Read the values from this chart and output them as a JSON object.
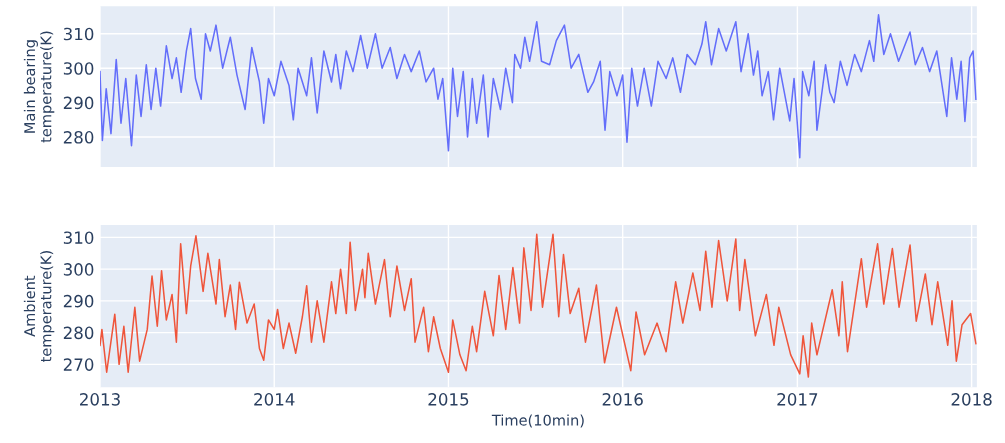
{
  "chart_data": [
    {
      "type": "line",
      "ylabel": "Main bearing\ntemperature(K)",
      "color": "#636efa",
      "grid": true,
      "tick_labels": "y",
      "xlim": [
        "2013-01-01",
        "2018-01-12"
      ],
      "xticks": [
        "2013",
        "2014",
        "2015",
        "2016",
        "2017",
        "2018"
      ],
      "ylim": [
        271.3,
        318
      ],
      "yticks": [
        280,
        290,
        300,
        310
      ],
      "x": [
        "2013-01-01",
        "2013-01-06",
        "2013-01-14",
        "2013-01-24",
        "2013-02-04",
        "2013-02-14",
        "2013-02-24",
        "2013-03-08",
        "2013-03-18",
        "2013-03-28",
        "2013-04-08",
        "2013-04-18",
        "2013-04-28",
        "2013-05-08",
        "2013-05-20",
        "2013-06-01",
        "2013-06-10",
        "2013-06-20",
        "2013-07-01",
        "2013-07-10",
        "2013-07-20",
        "2013-08-01",
        "2013-08-10",
        "2013-08-20",
        "2013-09-01",
        "2013-09-15",
        "2013-10-01",
        "2013-10-15",
        "2013-11-01",
        "2013-11-15",
        "2013-12-01",
        "2013-12-10",
        "2013-12-20",
        "2014-01-01",
        "2014-01-15",
        "2014-02-01",
        "2014-02-10",
        "2014-02-20",
        "2014-03-10",
        "2014-03-20",
        "2014-04-01",
        "2014-04-15",
        "2014-05-01",
        "2014-05-10",
        "2014-05-20",
        "2014-06-01",
        "2014-06-15",
        "2014-07-01",
        "2014-07-15",
        "2014-08-01",
        "2014-08-15",
        "2014-09-01",
        "2014-09-15",
        "2014-10-01",
        "2014-10-15",
        "2014-11-01",
        "2014-11-15",
        "2014-12-01",
        "2014-12-10",
        "2014-12-20",
        "2015-01-01",
        "2015-01-10",
        "2015-01-20",
        "2015-02-01",
        "2015-02-10",
        "2015-02-20",
        "2015-03-01",
        "2015-03-15",
        "2015-03-25",
        "2015-04-05",
        "2015-04-20",
        "2015-05-01",
        "2015-05-15",
        "2015-05-20",
        "2015-06-01",
        "2015-06-10",
        "2015-06-20",
        "2015-07-05",
        "2015-07-15",
        "2015-08-01",
        "2015-08-15",
        "2015-09-01",
        "2015-09-15",
        "2015-10-01",
        "2015-10-20",
        "2015-11-01",
        "2015-11-15",
        "2015-11-25",
        "2015-12-05",
        "2015-12-20",
        "2016-01-01",
        "2016-01-10",
        "2016-01-20",
        "2016-02-01",
        "2016-02-15",
        "2016-03-01",
        "2016-03-15",
        "2016-04-01",
        "2016-04-15",
        "2016-05-01",
        "2016-05-15",
        "2016-06-01",
        "2016-06-15",
        "2016-06-23",
        "2016-07-05",
        "2016-07-20",
        "2016-08-05",
        "2016-08-25",
        "2016-09-05",
        "2016-09-20",
        "2016-10-01",
        "2016-10-10",
        "2016-10-19",
        "2016-11-01",
        "2016-11-12",
        "2016-11-25",
        "2016-12-16",
        "2016-12-25",
        "2017-01-06",
        "2017-01-12",
        "2017-01-25",
        "2017-02-05",
        "2017-02-11",
        "2017-03-01",
        "2017-03-10",
        "2017-03-19",
        "2017-04-01",
        "2017-04-15",
        "2017-05-01",
        "2017-05-15",
        "2017-06-01",
        "2017-06-10",
        "2017-06-20",
        "2017-07-01",
        "2017-07-15",
        "2017-08-01",
        "2017-08-25",
        "2017-09-05",
        "2017-09-20",
        "2017-10-05",
        "2017-10-20",
        "2017-11-10",
        "2017-11-20",
        "2017-12-01",
        "2017-12-10",
        "2017-12-18",
        "2017-12-28",
        "2018-01-04",
        "2018-01-10"
      ],
      "values": [
        299,
        279,
        294,
        281,
        302.5,
        284,
        297,
        277.5,
        298,
        286,
        301,
        288,
        300,
        289,
        306.5,
        297,
        303,
        293,
        305,
        311.5,
        297,
        291,
        310,
        305,
        312.5,
        300,
        309,
        298,
        288,
        306,
        296,
        284,
        297,
        292,
        302,
        295,
        285,
        300,
        292,
        303,
        287,
        305,
        296,
        304,
        294,
        305,
        299,
        309.5,
        300,
        310,
        300,
        306,
        297,
        304,
        299,
        305,
        296,
        300,
        291,
        297,
        276,
        300,
        286,
        299,
        280,
        297,
        284,
        298,
        280,
        297,
        288,
        300,
        290,
        304,
        300,
        309,
        302,
        313.5,
        302,
        301,
        308,
        312.5,
        300,
        304,
        293,
        296,
        302,
        282,
        299,
        292,
        298,
        278.5,
        300,
        289,
        300,
        289,
        302,
        297,
        303,
        293,
        304,
        301,
        307,
        313.5,
        301,
        311.5,
        305,
        313.5,
        299,
        310,
        298,
        305,
        292,
        299,
        285,
        300,
        284.7,
        297,
        274,
        299,
        292,
        302,
        282,
        301,
        293,
        290,
        302,
        295,
        304,
        299,
        308,
        302,
        315.5,
        304,
        310,
        302,
        310.5,
        301,
        306,
        299,
        305,
        286,
        303,
        291,
        302,
        284.5,
        303,
        305,
        291
      ]
    },
    {
      "type": "line",
      "ylabel": "Ambient\ntemperature(K)",
      "xlabel": "Time(10min)",
      "color": "#ef553b",
      "grid": true,
      "xlim": [
        "2013-01-01",
        "2018-01-12"
      ],
      "xticks": [
        "2013",
        "2014",
        "2015",
        "2016",
        "2017",
        "2018"
      ],
      "ylim": [
        262.8,
        313.9
      ],
      "yticks": [
        270,
        280,
        290,
        300,
        310
      ],
      "x": [
        "2013-01-01",
        "2013-01-05",
        "2013-01-15",
        "2013-02-01",
        "2013-02-10",
        "2013-02-20",
        "2013-03-01",
        "2013-03-15",
        "2013-03-25",
        "2013-04-10",
        "2013-04-20",
        "2013-05-01",
        "2013-05-10",
        "2013-05-20",
        "2013-06-01",
        "2013-06-10",
        "2013-06-19",
        "2013-07-01",
        "2013-07-10",
        "2013-07-21",
        "2013-08-05",
        "2013-08-15",
        "2013-09-01",
        "2013-09-08",
        "2013-09-20",
        "2013-10-01",
        "2013-10-12",
        "2013-10-20",
        "2013-11-05",
        "2013-11-20",
        "2013-12-01",
        "2013-12-10",
        "2013-12-20",
        "2014-01-01",
        "2014-01-08",
        "2014-01-20",
        "2014-02-01",
        "2014-02-15",
        "2014-03-01",
        "2014-03-10",
        "2014-03-20",
        "2014-04-01",
        "2014-04-15",
        "2014-05-01",
        "2014-05-10",
        "2014-05-20",
        "2014-06-01",
        "2014-06-09",
        "2014-06-20",
        "2014-07-05",
        "2014-07-10",
        "2014-07-17",
        "2014-08-01",
        "2014-08-20",
        "2014-09-01",
        "2014-09-15",
        "2014-10-01",
        "2014-10-15",
        "2014-10-23",
        "2014-11-10",
        "2014-11-20",
        "2014-12-01",
        "2014-12-15",
        "2015-01-01",
        "2015-01-10",
        "2015-01-25",
        "2015-02-07",
        "2015-02-20",
        "2015-03-01",
        "2015-03-18",
        "2015-04-05",
        "2015-04-17",
        "2015-05-01",
        "2015-05-16",
        "2015-05-30",
        "2015-06-08",
        "2015-06-23",
        "2015-07-05",
        "2015-07-17",
        "2015-08-08",
        "2015-08-20",
        "2015-08-30",
        "2015-09-13",
        "2015-10-01",
        "2015-10-15",
        "2015-11-07",
        "2015-11-24",
        "2015-12-19",
        "2016-01-18",
        "2016-01-29",
        "2016-02-16",
        "2016-03-13",
        "2016-04-01",
        "2016-04-21",
        "2016-05-06",
        "2016-05-27",
        "2016-06-11",
        "2016-06-23",
        "2016-07-06",
        "2016-07-20",
        "2016-08-07",
        "2016-08-25",
        "2016-09-02",
        "2016-09-13",
        "2016-10-05",
        "2016-10-28",
        "2016-11-13",
        "2016-11-23",
        "2016-12-18",
        "2017-01-06",
        "2017-01-13",
        "2017-01-24",
        "2017-01-31",
        "2017-02-11",
        "2017-03-15",
        "2017-03-29",
        "2017-04-05",
        "2017-04-16",
        "2017-05-15",
        "2017-05-26",
        "2017-06-18",
        "2017-07-01",
        "2017-07-19",
        "2017-08-02",
        "2017-08-25",
        "2017-09-07",
        "2017-09-26",
        "2017-10-10",
        "2017-10-22",
        "2017-11-12",
        "2017-11-21",
        "2017-11-30",
        "2017-12-12",
        "2017-12-30",
        "2018-01-10"
      ],
      "values": [
        276,
        281,
        267.5,
        285.8,
        270,
        282,
        267.5,
        288,
        271,
        281,
        297.8,
        282,
        299.5,
        284,
        292,
        277,
        308,
        286,
        301,
        310.5,
        293,
        305,
        289,
        303,
        285,
        295,
        281,
        295.9,
        283,
        289,
        275,
        271.3,
        284,
        281,
        287.3,
        275,
        283,
        273.5,
        285,
        294.8,
        277,
        290,
        277,
        296,
        286,
        300,
        286,
        308.5,
        287,
        300,
        291,
        305,
        289,
        303,
        285,
        301,
        287,
        297,
        277,
        288,
        274,
        285,
        275,
        267.5,
        284,
        273,
        268,
        282,
        274,
        293,
        279,
        298,
        281,
        300.5,
        283,
        306.7,
        287,
        311,
        288,
        311,
        285,
        304.6,
        286,
        294,
        277,
        295,
        270.5,
        288,
        268,
        286.5,
        273,
        283,
        274,
        296,
        283,
        298.8,
        287,
        305.6,
        288,
        309,
        290,
        309.5,
        287,
        303,
        279,
        292,
        276,
        288,
        273,
        267,
        279,
        266,
        283,
        273,
        293.5,
        279,
        296,
        274,
        303.3,
        288,
        308,
        289,
        306.5,
        288,
        307.6,
        283.6,
        298.5,
        282.5,
        296,
        276,
        290,
        271,
        282.5,
        286,
        276.5
      ]
    }
  ]
}
